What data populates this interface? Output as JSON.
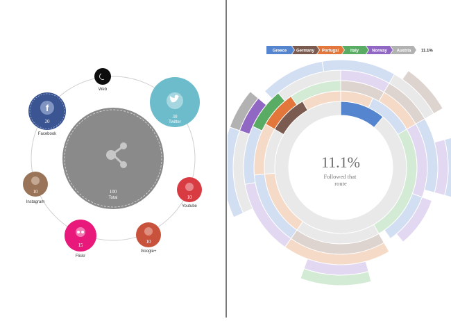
{
  "left_panel": {
    "bubbles": [
      {
        "id": "web",
        "label": "Web",
        "value": "",
        "icon": "web-icon",
        "color": "#0d0d0d"
      },
      {
        "id": "twitter",
        "label": "Twitter",
        "value": "30",
        "icon": "twitter-icon",
        "color": "#6cbccc"
      },
      {
        "id": "youtube",
        "label": "Youtube",
        "value": "10",
        "icon": "youtube-icon",
        "color": "#d83b42"
      },
      {
        "id": "googleplus",
        "label": "Google+",
        "value": "10",
        "icon": "google-plus-icon",
        "color": "#c9523c"
      },
      {
        "id": "flickr",
        "label": "Flickr",
        "value": "15",
        "icon": "flickr-icon",
        "color": "#e8197a"
      },
      {
        "id": "instagram",
        "label": "Instagram",
        "value": "10",
        "icon": "instagram-icon",
        "color": "#9a7458"
      },
      {
        "id": "facebook",
        "label": "Facebook",
        "value": "20",
        "icon": "facebook-icon",
        "color": "#3a5592"
      }
    ],
    "total": {
      "label": "Total",
      "value": "100",
      "icon": "share-icon",
      "color": "#8a8a8a"
    }
  },
  "right_panel": {
    "breadcrumb": [
      {
        "label": "Greece",
        "color": "#5585cf"
      },
      {
        "label": "Germany",
        "color": "#7b5b4f"
      },
      {
        "label": "Portugal",
        "color": "#e3763a"
      },
      {
        "label": "Italy",
        "color": "#5aac64"
      },
      {
        "label": "Norway",
        "color": "#9068c4"
      },
      {
        "label": "Austria",
        "color": "#b2b2b2"
      }
    ],
    "breadcrumb_percent": "11.1%",
    "center_percent": "11.1%",
    "center_text": "Followed that route"
  }
}
